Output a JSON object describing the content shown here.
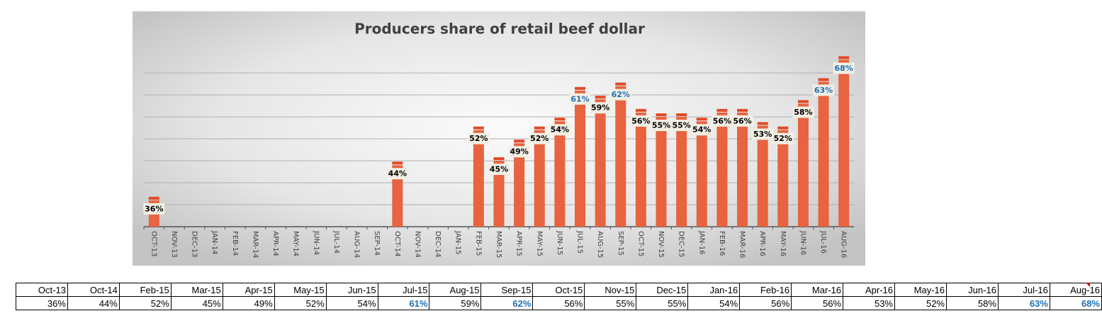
{
  "chart_data": {
    "type": "bar",
    "title": "Producers share of retail beef dollar",
    "categories": [
      "OCT-13",
      "NOV-13",
      "DEC-13",
      "JAN-14",
      "FEB-14",
      "MAR-14",
      "APR-14",
      "MAY-14",
      "JUN-14",
      "JUL-14",
      "AUG-14",
      "SEP-14",
      "OCT-14",
      "NOV-14",
      "DEC-14",
      "JAN-15",
      "FEB-15",
      "MAR-15",
      "APR-15",
      "MAY-15",
      "JUN-15",
      "JUL-15",
      "AUG-15",
      "SEP-15",
      "OCT-15",
      "NOV-15",
      "DEC-15",
      "JAN-16",
      "FEB-16",
      "MAR-16",
      "APR-16",
      "MAY-16",
      "JUN-16",
      "JUL-16",
      "AUG-16"
    ],
    "values": [
      36,
      null,
      null,
      null,
      null,
      null,
      null,
      null,
      null,
      null,
      null,
      null,
      44,
      null,
      null,
      null,
      52,
      45,
      49,
      52,
      54,
      61,
      59,
      62,
      56,
      55,
      55,
      54,
      56,
      56,
      53,
      52,
      58,
      63,
      68
    ],
    "value_labels": [
      "36%",
      null,
      null,
      null,
      null,
      null,
      null,
      null,
      null,
      null,
      null,
      null,
      "44%",
      null,
      null,
      null,
      "52%",
      "45%",
      "49%",
      "52%",
      "54%",
      "61%",
      "59%",
      "62%",
      "56%",
      "55%",
      "55%",
      "54%",
      "56%",
      "56%",
      "53%",
      "52%",
      "58%",
      "63%",
      "68%"
    ],
    "value_label_colors": [
      "#000",
      null,
      null,
      null,
      null,
      null,
      null,
      null,
      null,
      null,
      null,
      null,
      "#000",
      null,
      null,
      null,
      "#000",
      "#000",
      "#000",
      "#000",
      "#000",
      "#1f6fb5",
      "#000",
      "#1f6fb5",
      "#000",
      "#000",
      "#000",
      "#000",
      "#000",
      "#000",
      "#000",
      "#000",
      "#000",
      "#1f6fb5",
      "#1f6fb5"
    ],
    "color": "#e8633f",
    "cap_color": "#e04a25",
    "ylim": [
      30,
      70
    ],
    "yticks": [
      30,
      35,
      40,
      45,
      50,
      55,
      60,
      65
    ],
    "show_ytick_labels": false,
    "grid": true
  },
  "table": {
    "header": [
      "Oct-13",
      "Oct-14",
      "Feb-15",
      "Mar-15",
      "Apr-15",
      "May-15",
      "Jun-15",
      "Jul-15",
      "Aug-15",
      "Sep-15",
      "Oct-15",
      "Nov-15",
      "Dec-15",
      "Jan-16",
      "Feb-16",
      "Mar-16",
      "Apr-16",
      "May-16",
      "Jun-16",
      "Jul-16",
      "Aug-16"
    ],
    "row": [
      "36%",
      "44%",
      "52%",
      "45%",
      "49%",
      "52%",
      "54%",
      "61%",
      "59%",
      "62%",
      "56%",
      "55%",
      "55%",
      "54%",
      "56%",
      "56%",
      "53%",
      "52%",
      "58%",
      "63%",
      "68%"
    ],
    "row_colors": [
      "#000",
      "#000",
      "#000",
      "#000",
      "#000",
      "#000",
      "#000",
      "#1f6fb5",
      "#000",
      "#1f6fb5",
      "#000",
      "#000",
      "#000",
      "#000",
      "#000",
      "#000",
      "#000",
      "#000",
      "#000",
      "#1f6fb5",
      "#1f6fb5"
    ]
  }
}
